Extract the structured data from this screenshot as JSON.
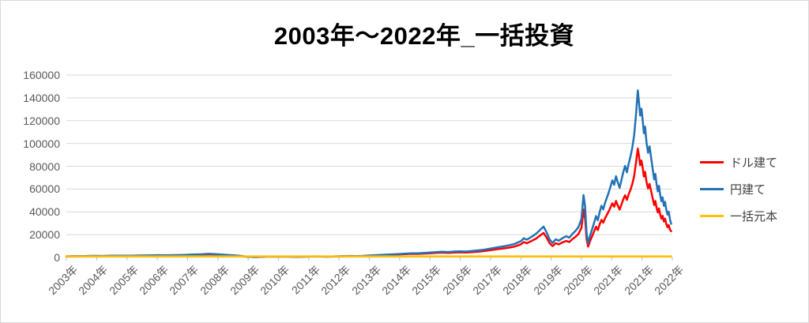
{
  "title": {
    "text": "2003年～2022年_一括投資",
    "color": "#000000"
  },
  "frame_color": "#d9d9d9",
  "chart_data": {
    "type": "line",
    "title": "2003年～2022年_一括投資",
    "x_axis": {
      "labels": [
        "2003年",
        "2004年",
        "2005年",
        "2006年",
        "2007年",
        "2008年",
        "2009年",
        "2010年",
        "2011年",
        "2012年",
        "2013年",
        "2014年",
        "2015年",
        "2016年",
        "2017年",
        "2018年",
        "2019年",
        "2020年",
        "2021年",
        "2021年",
        "2022年"
      ],
      "label_color": "#595959"
    },
    "y_axis": {
      "min": 0,
      "max": 160000,
      "step": 20000,
      "tick_labels": [
        "0",
        "20000",
        "40000",
        "60000",
        "80000",
        "100000",
        "120000",
        "140000",
        "160000"
      ],
      "label_color": "#595959"
    },
    "grid": {
      "on": true,
      "color": "#d9d9d9"
    },
    "legend": {
      "position": "right",
      "items": [
        {
          "label": "ドル建て",
          "color": "#ff0000"
        },
        {
          "label": "円建て",
          "color": "#2272b5"
        },
        {
          "label": "一括元本",
          "color": "#ffc000"
        }
      ]
    },
    "series": [
      {
        "name": "ドル建て",
        "color": "#ff0000",
        "width": 2.5,
        "points": [
          [
            2003.0,
            1000
          ],
          [
            2003.3,
            1100
          ],
          [
            2003.6,
            1200
          ],
          [
            2003.9,
            1300
          ],
          [
            2004.2,
            1250
          ],
          [
            2004.5,
            1400
          ],
          [
            2004.8,
            1500
          ],
          [
            2005.1,
            1450
          ],
          [
            2005.4,
            1550
          ],
          [
            2005.7,
            1650
          ],
          [
            2006.0,
            1800
          ],
          [
            2006.3,
            1750
          ],
          [
            2006.6,
            1850
          ],
          [
            2006.9,
            2000
          ],
          [
            2007.2,
            2300
          ],
          [
            2007.5,
            2500
          ],
          [
            2007.7,
            2800
          ],
          [
            2007.9,
            2600
          ],
          [
            2008.1,
            2300
          ],
          [
            2008.3,
            2000
          ],
          [
            2008.5,
            1800
          ],
          [
            2008.7,
            1400
          ],
          [
            2008.9,
            900
          ],
          [
            2009.1,
            500
          ],
          [
            2009.25,
            380
          ],
          [
            2009.4,
            550
          ],
          [
            2009.6,
            750
          ],
          [
            2009.8,
            820
          ],
          [
            2010.0,
            760
          ],
          [
            2010.2,
            850
          ],
          [
            2010.4,
            700
          ],
          [
            2010.6,
            600
          ],
          [
            2010.8,
            700
          ],
          [
            2011.0,
            800
          ],
          [
            2011.2,
            900
          ],
          [
            2011.4,
            820
          ],
          [
            2011.6,
            740
          ],
          [
            2011.8,
            850
          ],
          [
            2012.0,
            950
          ],
          [
            2012.2,
            1100
          ],
          [
            2012.4,
            1250
          ],
          [
            2012.6,
            1150
          ],
          [
            2012.8,
            1300
          ],
          [
            2013.0,
            1600
          ],
          [
            2013.2,
            1800
          ],
          [
            2013.4,
            2000
          ],
          [
            2013.6,
            2200
          ],
          [
            2013.8,
            2450
          ],
          [
            2014.0,
            2700
          ],
          [
            2014.2,
            2950
          ],
          [
            2014.4,
            3200
          ],
          [
            2014.6,
            3100
          ],
          [
            2014.8,
            3400
          ],
          [
            2015.0,
            3700
          ],
          [
            2015.2,
            4000
          ],
          [
            2015.4,
            4200
          ],
          [
            2015.6,
            4000
          ],
          [
            2015.8,
            4350
          ],
          [
            2016.0,
            4500
          ],
          [
            2016.2,
            4300
          ],
          [
            2016.4,
            4700
          ],
          [
            2016.6,
            5100
          ],
          [
            2016.8,
            5600
          ],
          [
            2017.0,
            6400
          ],
          [
            2017.2,
            7100
          ],
          [
            2017.4,
            7800
          ],
          [
            2017.6,
            8600
          ],
          [
            2017.8,
            9600
          ],
          [
            2018.0,
            11500
          ],
          [
            2018.1,
            13500
          ],
          [
            2018.2,
            12500
          ],
          [
            2018.35,
            14500
          ],
          [
            2018.5,
            16500
          ],
          [
            2018.65,
            19500
          ],
          [
            2018.75,
            21500
          ],
          [
            2018.85,
            17500
          ],
          [
            2018.95,
            12500
          ],
          [
            2019.05,
            10000
          ],
          [
            2019.15,
            12500
          ],
          [
            2019.25,
            11500
          ],
          [
            2019.4,
            13500
          ],
          [
            2019.5,
            14500
          ],
          [
            2019.6,
            13500
          ],
          [
            2019.7,
            16000
          ],
          [
            2019.8,
            18000
          ],
          [
            2019.9,
            20500
          ],
          [
            2020.0,
            26000
          ],
          [
            2020.07,
            42000
          ],
          [
            2020.12,
            34000
          ],
          [
            2020.17,
            16000
          ],
          [
            2020.22,
            9500
          ],
          [
            2020.28,
            14000
          ],
          [
            2020.35,
            18500
          ],
          [
            2020.42,
            23000
          ],
          [
            2020.48,
            27000
          ],
          [
            2020.54,
            24000
          ],
          [
            2020.6,
            29000
          ],
          [
            2020.66,
            33000
          ],
          [
            2020.72,
            30500
          ],
          [
            2020.78,
            34500
          ],
          [
            2020.84,
            37500
          ],
          [
            2020.9,
            40500
          ],
          [
            2020.96,
            44000
          ],
          [
            2021.02,
            47500
          ],
          [
            2021.08,
            44500
          ],
          [
            2021.14,
            49500
          ],
          [
            2021.2,
            45500
          ],
          [
            2021.26,
            42000
          ],
          [
            2021.32,
            46500
          ],
          [
            2021.38,
            51000
          ],
          [
            2021.44,
            54500
          ],
          [
            2021.5,
            50500
          ],
          [
            2021.56,
            55500
          ],
          [
            2021.62,
            59500
          ],
          [
            2021.68,
            64500
          ],
          [
            2021.74,
            71500
          ],
          [
            2021.8,
            83000
          ],
          [
            2021.86,
            95500
          ],
          [
            2021.9,
            89000
          ],
          [
            2021.94,
            81000
          ],
          [
            2021.98,
            85000
          ],
          [
            2022.02,
            79000
          ],
          [
            2022.06,
            71000
          ],
          [
            2022.1,
            75000
          ],
          [
            2022.15,
            66000
          ],
          [
            2022.2,
            60500
          ],
          [
            2022.25,
            64500
          ],
          [
            2022.3,
            58000
          ],
          [
            2022.35,
            52000
          ],
          [
            2022.4,
            46000
          ],
          [
            2022.44,
            49500
          ],
          [
            2022.48,
            43500
          ],
          [
            2022.52,
            39500
          ],
          [
            2022.56,
            43000
          ],
          [
            2022.6,
            37500
          ],
          [
            2022.64,
            34000
          ],
          [
            2022.68,
            36500
          ],
          [
            2022.72,
            31500
          ],
          [
            2022.76,
            34000
          ],
          [
            2022.8,
            29500
          ],
          [
            2022.84,
            26500
          ],
          [
            2022.88,
            28500
          ],
          [
            2022.92,
            24500
          ],
          [
            2022.96,
            23000
          ]
        ]
      },
      {
        "name": "円建て",
        "color": "#2272b5",
        "width": 2.5,
        "points": [
          [
            2003.0,
            1000
          ],
          [
            2003.3,
            1120
          ],
          [
            2003.6,
            1250
          ],
          [
            2003.9,
            1380
          ],
          [
            2004.2,
            1330
          ],
          [
            2004.5,
            1500
          ],
          [
            2004.8,
            1620
          ],
          [
            2005.1,
            1570
          ],
          [
            2005.4,
            1700
          ],
          [
            2005.7,
            1820
          ],
          [
            2006.0,
            2000
          ],
          [
            2006.3,
            1930
          ],
          [
            2006.6,
            2060
          ],
          [
            2006.9,
            2230
          ],
          [
            2007.2,
            2580
          ],
          [
            2007.5,
            2820
          ],
          [
            2007.7,
            3180
          ],
          [
            2007.9,
            2930
          ],
          [
            2008.1,
            2570
          ],
          [
            2008.3,
            2210
          ],
          [
            2008.5,
            1960
          ],
          [
            2008.7,
            1500
          ],
          [
            2008.9,
            930
          ],
          [
            2009.1,
            520
          ],
          [
            2009.25,
            420
          ],
          [
            2009.4,
            600
          ],
          [
            2009.6,
            800
          ],
          [
            2009.8,
            870
          ],
          [
            2010.0,
            800
          ],
          [
            2010.2,
            890
          ],
          [
            2010.4,
            730
          ],
          [
            2010.6,
            630
          ],
          [
            2010.8,
            740
          ],
          [
            2011.0,
            840
          ],
          [
            2011.2,
            950
          ],
          [
            2011.4,
            860
          ],
          [
            2011.6,
            780
          ],
          [
            2011.8,
            900
          ],
          [
            2012.0,
            1010
          ],
          [
            2012.2,
            1170
          ],
          [
            2012.4,
            1340
          ],
          [
            2012.6,
            1240
          ],
          [
            2012.8,
            1410
          ],
          [
            2013.0,
            1760
          ],
          [
            2013.2,
            2000
          ],
          [
            2013.4,
            2240
          ],
          [
            2013.6,
            2480
          ],
          [
            2013.8,
            2780
          ],
          [
            2014.0,
            3080
          ],
          [
            2014.2,
            3390
          ],
          [
            2014.4,
            3700
          ],
          [
            2014.6,
            3600
          ],
          [
            2014.8,
            3970
          ],
          [
            2015.0,
            4340
          ],
          [
            2015.2,
            4720
          ],
          [
            2015.4,
            4980
          ],
          [
            2015.6,
            4760
          ],
          [
            2015.8,
            5200
          ],
          [
            2016.0,
            5400
          ],
          [
            2016.2,
            5180
          ],
          [
            2016.4,
            5690
          ],
          [
            2016.6,
            6200
          ],
          [
            2016.8,
            6840
          ],
          [
            2017.0,
            7800
          ],
          [
            2017.2,
            8700
          ],
          [
            2017.4,
            9600
          ],
          [
            2017.6,
            10600
          ],
          [
            2017.8,
            11900
          ],
          [
            2018.0,
            14300
          ],
          [
            2018.1,
            16800
          ],
          [
            2018.2,
            15600
          ],
          [
            2018.35,
            18100
          ],
          [
            2018.5,
            20700
          ],
          [
            2018.65,
            24500
          ],
          [
            2018.75,
            27100
          ],
          [
            2018.85,
            22100
          ],
          [
            2018.95,
            15800
          ],
          [
            2019.05,
            12700
          ],
          [
            2019.15,
            15900
          ],
          [
            2019.25,
            14700
          ],
          [
            2019.4,
            17300
          ],
          [
            2019.5,
            18600
          ],
          [
            2019.6,
            17300
          ],
          [
            2019.7,
            20600
          ],
          [
            2019.8,
            23200
          ],
          [
            2019.9,
            26500
          ],
          [
            2020.0,
            33800
          ],
          [
            2020.07,
            54800
          ],
          [
            2020.12,
            44500
          ],
          [
            2020.17,
            21000
          ],
          [
            2020.22,
            12500
          ],
          [
            2020.28,
            18500
          ],
          [
            2020.35,
            24600
          ],
          [
            2020.42,
            30700
          ],
          [
            2020.48,
            36300
          ],
          [
            2020.54,
            32600
          ],
          [
            2020.6,
            39700
          ],
          [
            2020.66,
            45400
          ],
          [
            2020.72,
            42200
          ],
          [
            2020.78,
            48000
          ],
          [
            2020.84,
            52500
          ],
          [
            2020.9,
            57000
          ],
          [
            2020.96,
            62300
          ],
          [
            2021.02,
            67600
          ],
          [
            2021.08,
            63700
          ],
          [
            2021.14,
            71200
          ],
          [
            2021.2,
            65800
          ],
          [
            2021.26,
            61000
          ],
          [
            2021.32,
            67900
          ],
          [
            2021.38,
            74800
          ],
          [
            2021.44,
            80300
          ],
          [
            2021.5,
            74700
          ],
          [
            2021.56,
            82400
          ],
          [
            2021.62,
            88700
          ],
          [
            2021.68,
            96500
          ],
          [
            2021.74,
            107300
          ],
          [
            2021.8,
            125000
          ],
          [
            2021.86,
            146500
          ],
          [
            2021.9,
            136000
          ],
          [
            2021.94,
            124500
          ],
          [
            2021.98,
            130500
          ],
          [
            2022.02,
            121000
          ],
          [
            2022.06,
            109000
          ],
          [
            2022.1,
            114800
          ],
          [
            2022.15,
            100500
          ],
          [
            2022.2,
            91800
          ],
          [
            2022.25,
            97400
          ],
          [
            2022.3,
            87200
          ],
          [
            2022.35,
            77800
          ],
          [
            2022.4,
            68500
          ],
          [
            2022.44,
            73300
          ],
          [
            2022.48,
            64100
          ],
          [
            2022.52,
            58000
          ],
          [
            2022.56,
            62800
          ],
          [
            2022.6,
            54600
          ],
          [
            2022.64,
            49300
          ],
          [
            2022.68,
            52700
          ],
          [
            2022.72,
            45300
          ],
          [
            2022.76,
            48700
          ],
          [
            2022.8,
            42100
          ],
          [
            2022.84,
            37600
          ],
          [
            2022.88,
            40200
          ],
          [
            2022.92,
            33900
          ],
          [
            2022.96,
            29500
          ]
        ]
      },
      {
        "name": "一括元本",
        "color": "#ffc000",
        "width": 2.5,
        "points": [
          [
            2003.0,
            1000
          ],
          [
            2022.96,
            1000
          ]
        ]
      }
    ]
  }
}
